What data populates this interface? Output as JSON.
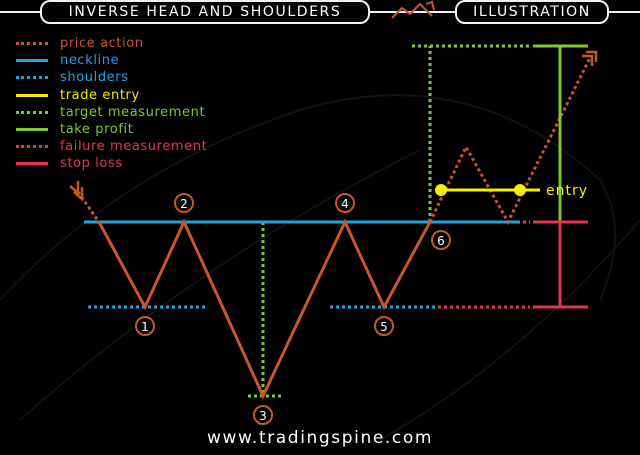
{
  "header": {
    "title": "INVERSE HEAD AND SHOULDERS",
    "section": "ILLUSTRATION"
  },
  "legend": [
    {
      "label": "price action",
      "color": "#c9572b",
      "style": "dotted-arrow"
    },
    {
      "label": "neckline",
      "color": "#1fa3e0",
      "style": "solid"
    },
    {
      "label": "shoulders",
      "color": "#1fa3e0",
      "style": "dotted"
    },
    {
      "label": "trade entry",
      "color": "#f5ee00",
      "style": "solid"
    },
    {
      "label": "target measurement",
      "color": "#7ec832",
      "style": "dotted"
    },
    {
      "label": "take profit",
      "color": "#7ec832",
      "style": "solid"
    },
    {
      "label": "failure measurement",
      "color": "#e8344b",
      "style": "dotted"
    },
    {
      "label": "stop loss",
      "color": "#e8344b",
      "style": "solid"
    }
  ],
  "points": [
    "1",
    "2",
    "3",
    "4",
    "5",
    "6"
  ],
  "entry_label": "entry",
  "footer": "www.tradingspine.com",
  "colors": {
    "price": "#c9572b",
    "neckline": "#1fa3e0",
    "entry": "#f5ee00",
    "target": "#7ec832",
    "stop": "#e8344b",
    "background": "#000000"
  }
}
